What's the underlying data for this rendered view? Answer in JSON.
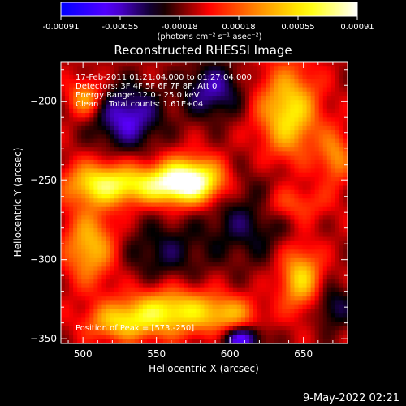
{
  "colorbar": {
    "ticks": [
      "-0.00091",
      "-0.00055",
      "-0.00018",
      "0.00018",
      "0.00055",
      "0.00091"
    ],
    "unit_label": "(photons cm⁻² s⁻¹ asec⁻²)"
  },
  "chart_data": {
    "type": "heatmap",
    "title": "Reconstructed RHESSI Image",
    "xlabel": "Heliocentric X (arcsec)",
    "ylabel": "Heliocentric Y (arcsec)",
    "xlim": [
      485,
      680
    ],
    "ylim": [
      -353,
      -175
    ],
    "xticks": [
      500,
      550,
      600,
      650
    ],
    "yticks": [
      -200,
      -250,
      -300,
      -350
    ],
    "value_range": [
      -0.00091,
      0.00091
    ],
    "colormap": [
      "#0000ff",
      "#5a00ff",
      "#000000",
      "#ff0000",
      "#ff8c00",
      "#ffff00",
      "#ffffff"
    ],
    "info_lines": [
      "17-Feb-2011 01:21:04.000 to 01:27:04.000",
      "Detectors: 3F 4F 5F 6F 7F 8F, Att 0",
      "Energy Range: 12.0 - 25.0 keV",
      "Clean    Total counts: 1.61E+04"
    ],
    "peak_label": "Position of Peak = [573,-250]",
    "peak": [
      573,
      -250
    ],
    "sources": [
      {
        "x": 573,
        "y": -250,
        "amp": 0.00091,
        "sx": 16,
        "sy": 10
      },
      {
        "x": 545,
        "y": -253,
        "amp": 0.00058,
        "sx": 26,
        "sy": 8
      },
      {
        "x": 510,
        "y": -252,
        "amp": 0.00052,
        "sx": 16,
        "sy": 10
      },
      {
        "x": 505,
        "y": -292,
        "amp": 0.00056,
        "sx": 12,
        "sy": 16
      },
      {
        "x": 502,
        "y": -198,
        "amp": 0.0005,
        "sx": 8,
        "sy": 8
      },
      {
        "x": 560,
        "y": -333,
        "amp": 0.0007,
        "sx": 22,
        "sy": 10
      },
      {
        "x": 525,
        "y": -340,
        "amp": 0.0005,
        "sx": 16,
        "sy": 8
      },
      {
        "x": 600,
        "y": -335,
        "amp": 0.0004,
        "sx": 14,
        "sy": 8
      },
      {
        "x": 640,
        "y": -207,
        "amp": 0.00068,
        "sx": 14,
        "sy": 20
      },
      {
        "x": 672,
        "y": -235,
        "amp": 0.0004,
        "sx": 8,
        "sy": 12
      },
      {
        "x": 648,
        "y": -312,
        "amp": 0.0006,
        "sx": 10,
        "sy": 14
      },
      {
        "x": 640,
        "y": -265,
        "amp": 0.0003,
        "sx": 18,
        "sy": 8
      },
      {
        "x": 530,
        "y": -210,
        "amp": -0.0005,
        "sx": 16,
        "sy": 14
      },
      {
        "x": 588,
        "y": -193,
        "amp": -0.00042,
        "sx": 14,
        "sy": 12
      },
      {
        "x": 608,
        "y": -350,
        "amp": -0.00055,
        "sx": 10,
        "sy": 6
      },
      {
        "x": 555,
        "y": -295,
        "amp": -0.00025,
        "sx": 20,
        "sy": 14
      },
      {
        "x": 612,
        "y": -272,
        "amp": -0.0003,
        "sx": 20,
        "sy": 20
      },
      {
        "x": 670,
        "y": -330,
        "amp": -0.0003,
        "sx": 10,
        "sy": 10
      }
    ],
    "background": -0.0001
  },
  "footer": {
    "timestamp": "9-May-2022 02:21"
  }
}
